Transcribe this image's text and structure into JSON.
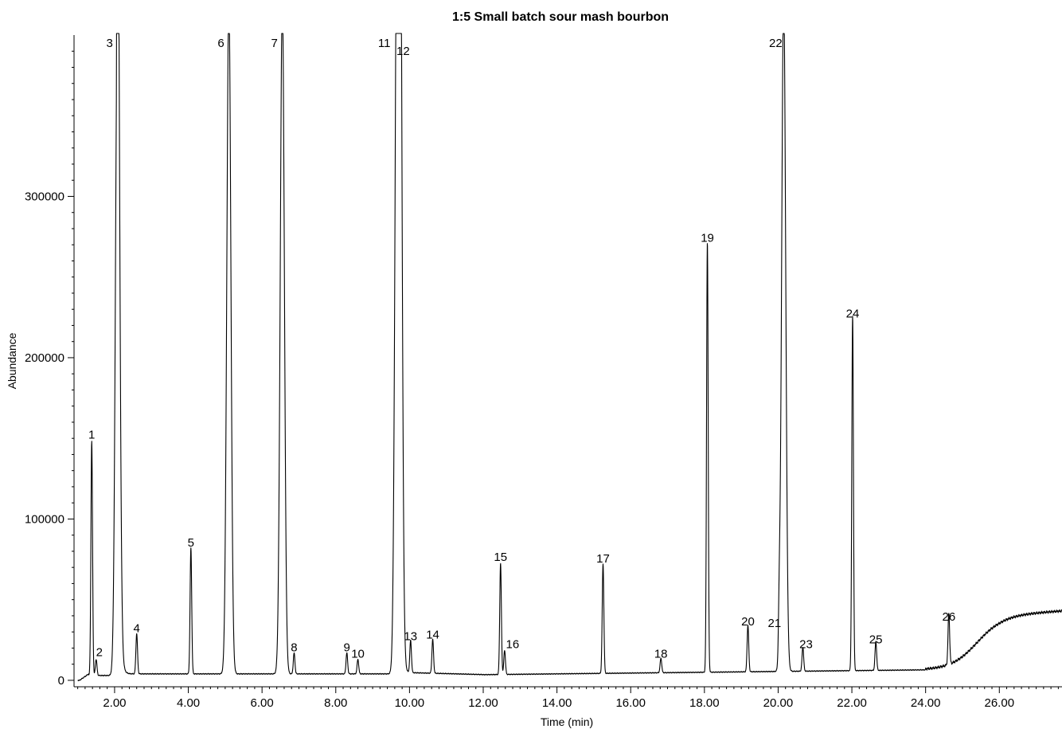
{
  "chart_data": {
    "type": "line",
    "title": "1:5 Small batch sour mash bourbon",
    "xlabel": "Time (min)",
    "ylabel": "Abundance",
    "xlim": [
      0.9,
      27.7
    ],
    "ylim": [
      -4000,
      400000
    ],
    "x_ticks": [
      2,
      4,
      6,
      8,
      10,
      12,
      14,
      16,
      18,
      20,
      22,
      24,
      26
    ],
    "x_tick_labels": [
      "2.00",
      "4.00",
      "6.00",
      "8.00",
      "10.00",
      "12.00",
      "14.00",
      "16.00",
      "18.00",
      "20.00",
      "22.00",
      "24.00",
      "26.00"
    ],
    "y_ticks": [
      0,
      100000,
      200000,
      300000
    ],
    "y_tick_labels": [
      "0",
      "100000",
      "200000",
      "300000"
    ],
    "grid": false,
    "series": [
      {
        "color": "#000000",
        "peaks": [
          {
            "label": "1",
            "rt": 1.38,
            "height": 145000
          },
          {
            "label": "2",
            "rt": 1.5,
            "height": 10000
          },
          {
            "label": "3",
            "rt": 2.08,
            "height": 420000
          },
          {
            "label": "4",
            "rt": 2.6,
            "height": 25000
          },
          {
            "label": "5",
            "rt": 4.07,
            "height": 78000
          },
          {
            "label": "6",
            "rt": 5.1,
            "height": 420000
          },
          {
            "label": "7",
            "rt": 6.55,
            "height": 420000
          },
          {
            "label": "8",
            "rt": 6.87,
            "height": 13000
          },
          {
            "label": "9",
            "rt": 8.3,
            "height": 13000
          },
          {
            "label": "10",
            "rt": 8.6,
            "height": 9000
          },
          {
            "label": "11",
            "rt": 9.66,
            "height": 420000
          },
          {
            "label": "12",
            "rt": 9.74,
            "height": 420000
          },
          {
            "label": "13",
            "rt": 10.03,
            "height": 20000
          },
          {
            "label": "14",
            "rt": 10.63,
            "height": 21000
          },
          {
            "label": "15",
            "rt": 12.47,
            "height": 69000
          },
          {
            "label": "16",
            "rt": 12.58,
            "height": 15000
          },
          {
            "label": "17",
            "rt": 15.25,
            "height": 68000
          },
          {
            "label": "18",
            "rt": 16.82,
            "height": 9000
          },
          {
            "label": "19",
            "rt": 18.08,
            "height": 267000
          },
          {
            "label": "20",
            "rt": 19.18,
            "height": 29000
          },
          {
            "label": "21",
            "rt": 20.03,
            "height": 28000
          },
          {
            "label": "22",
            "rt": 20.15,
            "height": 420000
          },
          {
            "label": "23",
            "rt": 20.67,
            "height": 15000
          },
          {
            "label": "24",
            "rt": 22.02,
            "height": 220000
          },
          {
            "label": "25",
            "rt": 22.65,
            "height": 18000
          },
          {
            "label": "26",
            "rt": 24.63,
            "height": 32000
          }
        ]
      }
    ]
  }
}
